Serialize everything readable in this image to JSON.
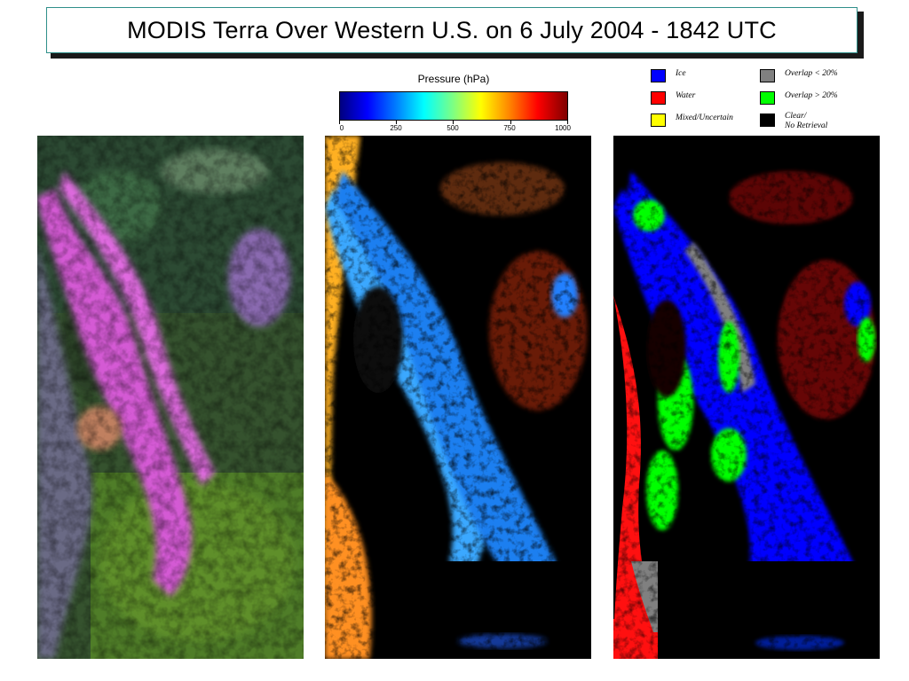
{
  "title": "MODIS Terra Over Western U.S. on 6 July 2004 - 1842 UTC",
  "colorbar": {
    "title": "Pressure (hPa)",
    "ticks": [
      "0",
      "250",
      "500",
      "750",
      "1000"
    ]
  },
  "legend": [
    {
      "label": "Ice",
      "label2": "",
      "color": "#0000ff"
    },
    {
      "label": "Water",
      "label2": "",
      "color": "#ff0000"
    },
    {
      "label": "Mixed/Uncertain",
      "label2": "",
      "color": "#ffff00"
    },
    {
      "label": "Overlap < 20%",
      "label2": "",
      "color": "#808080"
    },
    {
      "label": "Overlap > 20%",
      "label2": "",
      "color": "#00ff00"
    },
    {
      "label": "Clear/",
      "label2": "No Retrieval",
      "color": "#000000"
    }
  ],
  "panels": [
    {
      "content": "true-color-composite"
    },
    {
      "content": "cloud-top-pressure"
    },
    {
      "content": "cloud-phase"
    }
  ]
}
